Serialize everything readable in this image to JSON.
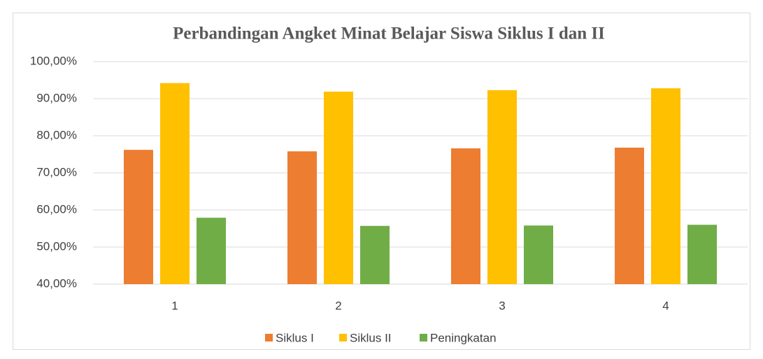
{
  "chart_data": {
    "type": "bar",
    "title": "Perbandingan Angket Minat Belajar Siswa Siklus I dan II",
    "categories": [
      "1",
      "2",
      "3",
      "4"
    ],
    "series": [
      {
        "name": "Siklus I",
        "color": "#ed7d31",
        "values": [
          76.2,
          75.8,
          76.6,
          76.8
        ]
      },
      {
        "name": "Siklus II",
        "color": "#ffc000",
        "values": [
          94.2,
          91.9,
          92.3,
          92.8
        ]
      },
      {
        "name": "Peningkatan",
        "color": "#70ad47",
        "values": [
          57.9,
          55.7,
          55.8,
          56.0
        ]
      }
    ],
    "ylim": [
      40,
      100
    ],
    "yticks": [
      {
        "value": 40,
        "label": "40,00%"
      },
      {
        "value": 50,
        "label": "50,00%"
      },
      {
        "value": 60,
        "label": "60,00%"
      },
      {
        "value": 70,
        "label": "70,00%"
      },
      {
        "value": 80,
        "label": "80,00%"
      },
      {
        "value": 90,
        "label": "90,00%"
      },
      {
        "value": 100,
        "label": "100,00%"
      }
    ],
    "grid": true,
    "legend": "bottom"
  }
}
